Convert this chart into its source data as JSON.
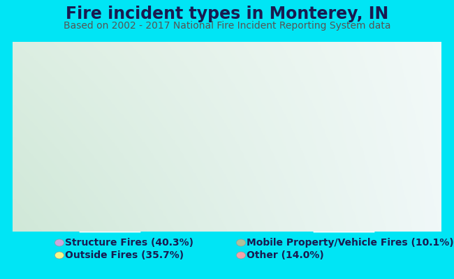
{
  "title": "Fire incident types in Monterey, IN",
  "subtitle": "Based on 2002 - 2017 National Fire Incident Reporting System data",
  "values": [
    40.3,
    10.1,
    35.7,
    14.0
  ],
  "colors": [
    "#c9a8de",
    "#aec09a",
    "#f5f888",
    "#f4a0a8"
  ],
  "legend_labels": [
    "Structure Fires (40.3%)",
    "Outside Fires (35.7%)",
    "Mobile Property/Vehicle Fires (10.1%)",
    "Other (14.0%)"
  ],
  "legend_colors": [
    "#c9a8de",
    "#f5f888",
    "#aec09a",
    "#f4a0a8"
  ],
  "background_color": "#00e5f5",
  "chart_bg_left": "#d0e8d8",
  "chart_bg_right": "#f0f8f8",
  "title_color": "#1a1a50",
  "subtitle_color": "#555555",
  "title_fontsize": 17,
  "subtitle_fontsize": 10,
  "legend_fontsize": 10,
  "outer_r": 210,
  "inner_r": 125
}
